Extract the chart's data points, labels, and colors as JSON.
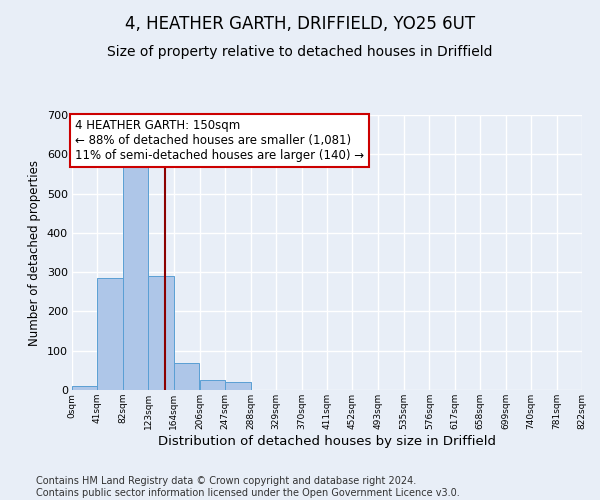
{
  "title": "4, HEATHER GARTH, DRIFFIELD, YO25 6UT",
  "subtitle": "Size of property relative to detached houses in Driffield",
  "xlabel": "Distribution of detached houses by size in Driffield",
  "ylabel": "Number of detached properties",
  "bin_edges": [
    0,
    41,
    82,
    123,
    164,
    206,
    247,
    288,
    329,
    370,
    411,
    452,
    493,
    535,
    576,
    617,
    658,
    699,
    740,
    781,
    822
  ],
  "bar_heights": [
    10,
    285,
    575,
    290,
    70,
    25,
    20,
    0,
    0,
    0,
    0,
    0,
    0,
    0,
    0,
    0,
    0,
    0,
    0,
    0
  ],
  "bar_color": "#aec6e8",
  "bar_edge_color": "#5a9fd4",
  "vline_x": 150,
  "vline_color": "#8b0000",
  "annotation_text": "4 HEATHER GARTH: 150sqm\n← 88% of detached houses are smaller (1,081)\n11% of semi-detached houses are larger (140) →",
  "annotation_box_color": "#ffffff",
  "annotation_box_edge_color": "#cc0000",
  "annotation_fontsize": 8.5,
  "ylim": [
    0,
    700
  ],
  "xlim": [
    0,
    822
  ],
  "tick_labels": [
    "0sqm",
    "41sqm",
    "82sqm",
    "123sqm",
    "164sqm",
    "206sqm",
    "247sqm",
    "288sqm",
    "329sqm",
    "370sqm",
    "411sqm",
    "452sqm",
    "493sqm",
    "535sqm",
    "576sqm",
    "617sqm",
    "658sqm",
    "699sqm",
    "740sqm",
    "781sqm",
    "822sqm"
  ],
  "footer_text": "Contains HM Land Registry data © Crown copyright and database right 2024.\nContains public sector information licensed under the Open Government Licence v3.0.",
  "title_fontsize": 12,
  "subtitle_fontsize": 10,
  "xlabel_fontsize": 9.5,
  "ylabel_fontsize": 8.5,
  "footer_fontsize": 7,
  "bg_color": "#e8eef7",
  "plot_bg_color": "#e8eef7",
  "grid_color": "#ffffff",
  "yticks": [
    0,
    100,
    200,
    300,
    400,
    500,
    600,
    700
  ]
}
